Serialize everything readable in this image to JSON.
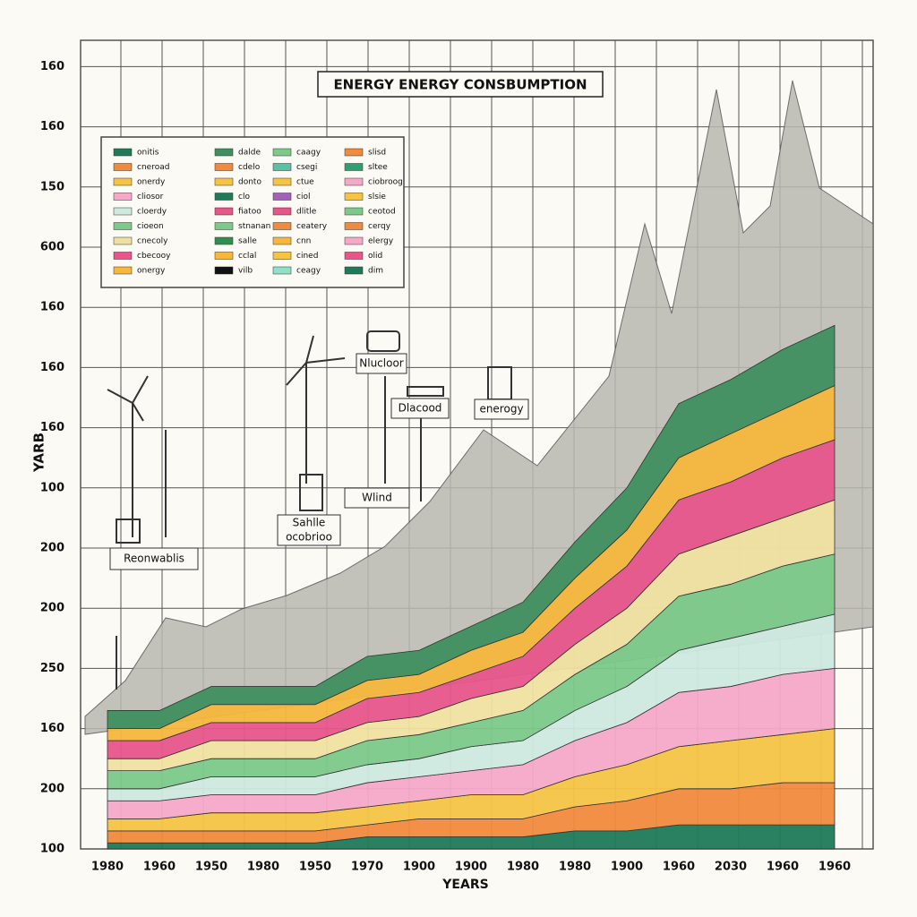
{
  "chart_data": {
    "type": "area",
    "stacked": true,
    "title": "ENERGY ENERGY CONSBUMPTION",
    "xlabel": "YEARS",
    "ylabel": "YARB",
    "grid": true,
    "categories": [
      "1980",
      "1960",
      "1950",
      "1980",
      "1950",
      "1970",
      "1900",
      "1900",
      "1980",
      "1980",
      "1900",
      "1960",
      "2030",
      "1960",
      "1960"
    ],
    "ylim": [
      0,
      13.5
    ],
    "yticks": [
      {
        "value": 0,
        "label": "100"
      },
      {
        "value": 1,
        "label": "200"
      },
      {
        "value": 2,
        "label": "160"
      },
      {
        "value": 3,
        "label": "250"
      },
      {
        "value": 4,
        "label": "200"
      },
      {
        "value": 5,
        "label": "200"
      },
      {
        "value": 6,
        "label": "100"
      },
      {
        "value": 7,
        "label": "160"
      },
      {
        "value": 8,
        "label": "160"
      },
      {
        "value": 9,
        "label": "160"
      },
      {
        "value": 10,
        "label": "600"
      },
      {
        "value": 11,
        "label": "150"
      },
      {
        "value": 12,
        "label": "160"
      },
      {
        "value": 13,
        "label": "160"
      }
    ],
    "series": [
      {
        "name": "onitis",
        "color": "#1f7a5a",
        "values": [
          0.1,
          0.1,
          0.1,
          0.1,
          0.1,
          0.2,
          0.2,
          0.2,
          0.2,
          0.3,
          0.3,
          0.4,
          0.4,
          0.4,
          0.4
        ]
      },
      {
        "name": "cneroad",
        "color": "#f08a3c",
        "values": [
          0.2,
          0.2,
          0.2,
          0.2,
          0.2,
          0.2,
          0.3,
          0.3,
          0.3,
          0.4,
          0.5,
          0.6,
          0.6,
          0.7,
          0.7
        ]
      },
      {
        "name": "onerdy",
        "color": "#f6c445",
        "values": [
          0.2,
          0.2,
          0.3,
          0.3,
          0.3,
          0.3,
          0.3,
          0.4,
          0.4,
          0.5,
          0.6,
          0.7,
          0.8,
          0.8,
          0.9
        ]
      },
      {
        "name": "cliosor",
        "color": "#f4a9c8",
        "values": [
          0.3,
          0.3,
          0.3,
          0.3,
          0.3,
          0.4,
          0.4,
          0.4,
          0.5,
          0.6,
          0.7,
          0.9,
          0.9,
          1.0,
          1.0
        ]
      },
      {
        "name": "cloerdy",
        "color": "#cfe9df",
        "values": [
          0.2,
          0.2,
          0.3,
          0.3,
          0.3,
          0.3,
          0.3,
          0.4,
          0.4,
          0.5,
          0.6,
          0.7,
          0.8,
          0.8,
          0.9
        ]
      },
      {
        "name": "cioeon",
        "color": "#7cc98a",
        "values": [
          0.3,
          0.3,
          0.3,
          0.3,
          0.3,
          0.4,
          0.4,
          0.4,
          0.5,
          0.6,
          0.7,
          0.9,
          0.9,
          1.0,
          1.0
        ]
      },
      {
        "name": "cnecoly",
        "color": "#f0e0a0",
        "values": [
          0.2,
          0.2,
          0.3,
          0.3,
          0.3,
          0.3,
          0.3,
          0.4,
          0.4,
          0.5,
          0.6,
          0.7,
          0.8,
          0.8,
          0.9
        ]
      },
      {
        "name": "cbecooy",
        "color": "#e8558a",
        "values": [
          0.3,
          0.3,
          0.3,
          0.3,
          0.3,
          0.4,
          0.4,
          0.4,
          0.5,
          0.6,
          0.7,
          0.9,
          0.9,
          1.0,
          1.0
        ]
      },
      {
        "name": "onergy",
        "color": "#f5b73c",
        "values": [
          0.2,
          0.2,
          0.3,
          0.3,
          0.3,
          0.3,
          0.3,
          0.4,
          0.4,
          0.5,
          0.6,
          0.7,
          0.8,
          0.8,
          0.9
        ]
      },
      {
        "name": "dalde",
        "color": "#3f8f5f",
        "values": [
          0.3,
          0.3,
          0.3,
          0.3,
          0.3,
          0.4,
          0.4,
          0.4,
          0.5,
          0.6,
          0.7,
          0.9,
          0.9,
          1.0,
          1.0
        ]
      }
    ],
    "legend_items": [
      {
        "name": "cdelo",
        "color": "#f08a3c"
      },
      {
        "name": "donto",
        "color": "#f6c445"
      },
      {
        "name": "clo",
        "color": "#1f7a5a"
      },
      {
        "name": "fiatoo",
        "color": "#e8558a"
      },
      {
        "name": "stnanan",
        "color": "#7cc98a"
      },
      {
        "name": "salle",
        "color": "#2f8f4f"
      },
      {
        "name": "cclal",
        "color": "#f5b73c"
      },
      {
        "name": "vilb",
        "color": "#111111"
      },
      {
        "name": "caagy",
        "color": "#7cc98a"
      },
      {
        "name": "csegi",
        "color": "#5bc0a8"
      },
      {
        "name": "ctue",
        "color": "#f6c445"
      },
      {
        "name": "ciol",
        "color": "#a063b8"
      },
      {
        "name": "dlitle",
        "color": "#e8558a"
      },
      {
        "name": "ceatery",
        "color": "#f08a3c"
      },
      {
        "name": "cnn",
        "color": "#f5b73c"
      },
      {
        "name": "cined",
        "color": "#f6c445"
      },
      {
        "name": "ceagy",
        "color": "#8fe0c8"
      },
      {
        "name": "slisd",
        "color": "#f08a3c"
      },
      {
        "name": "sltee",
        "color": "#2f9f6f"
      },
      {
        "name": "ciobroog",
        "color": "#f4a9c8"
      },
      {
        "name": "slsie",
        "color": "#f6c445"
      },
      {
        "name": "ceotod",
        "color": "#7cc98a"
      },
      {
        "name": "cerqy",
        "color": "#f08a3c"
      },
      {
        "name": "elergy",
        "color": "#f4a9c8"
      },
      {
        "name": "olid",
        "color": "#e8558a"
      },
      {
        "name": "dim",
        "color": "#1f7a5a"
      }
    ],
    "annotations": [
      "Reonwablis",
      "Sahlle",
      "ocobrioo",
      "Wlind",
      "Dlacood",
      "Nlucloor",
      "enerogy"
    ]
  }
}
